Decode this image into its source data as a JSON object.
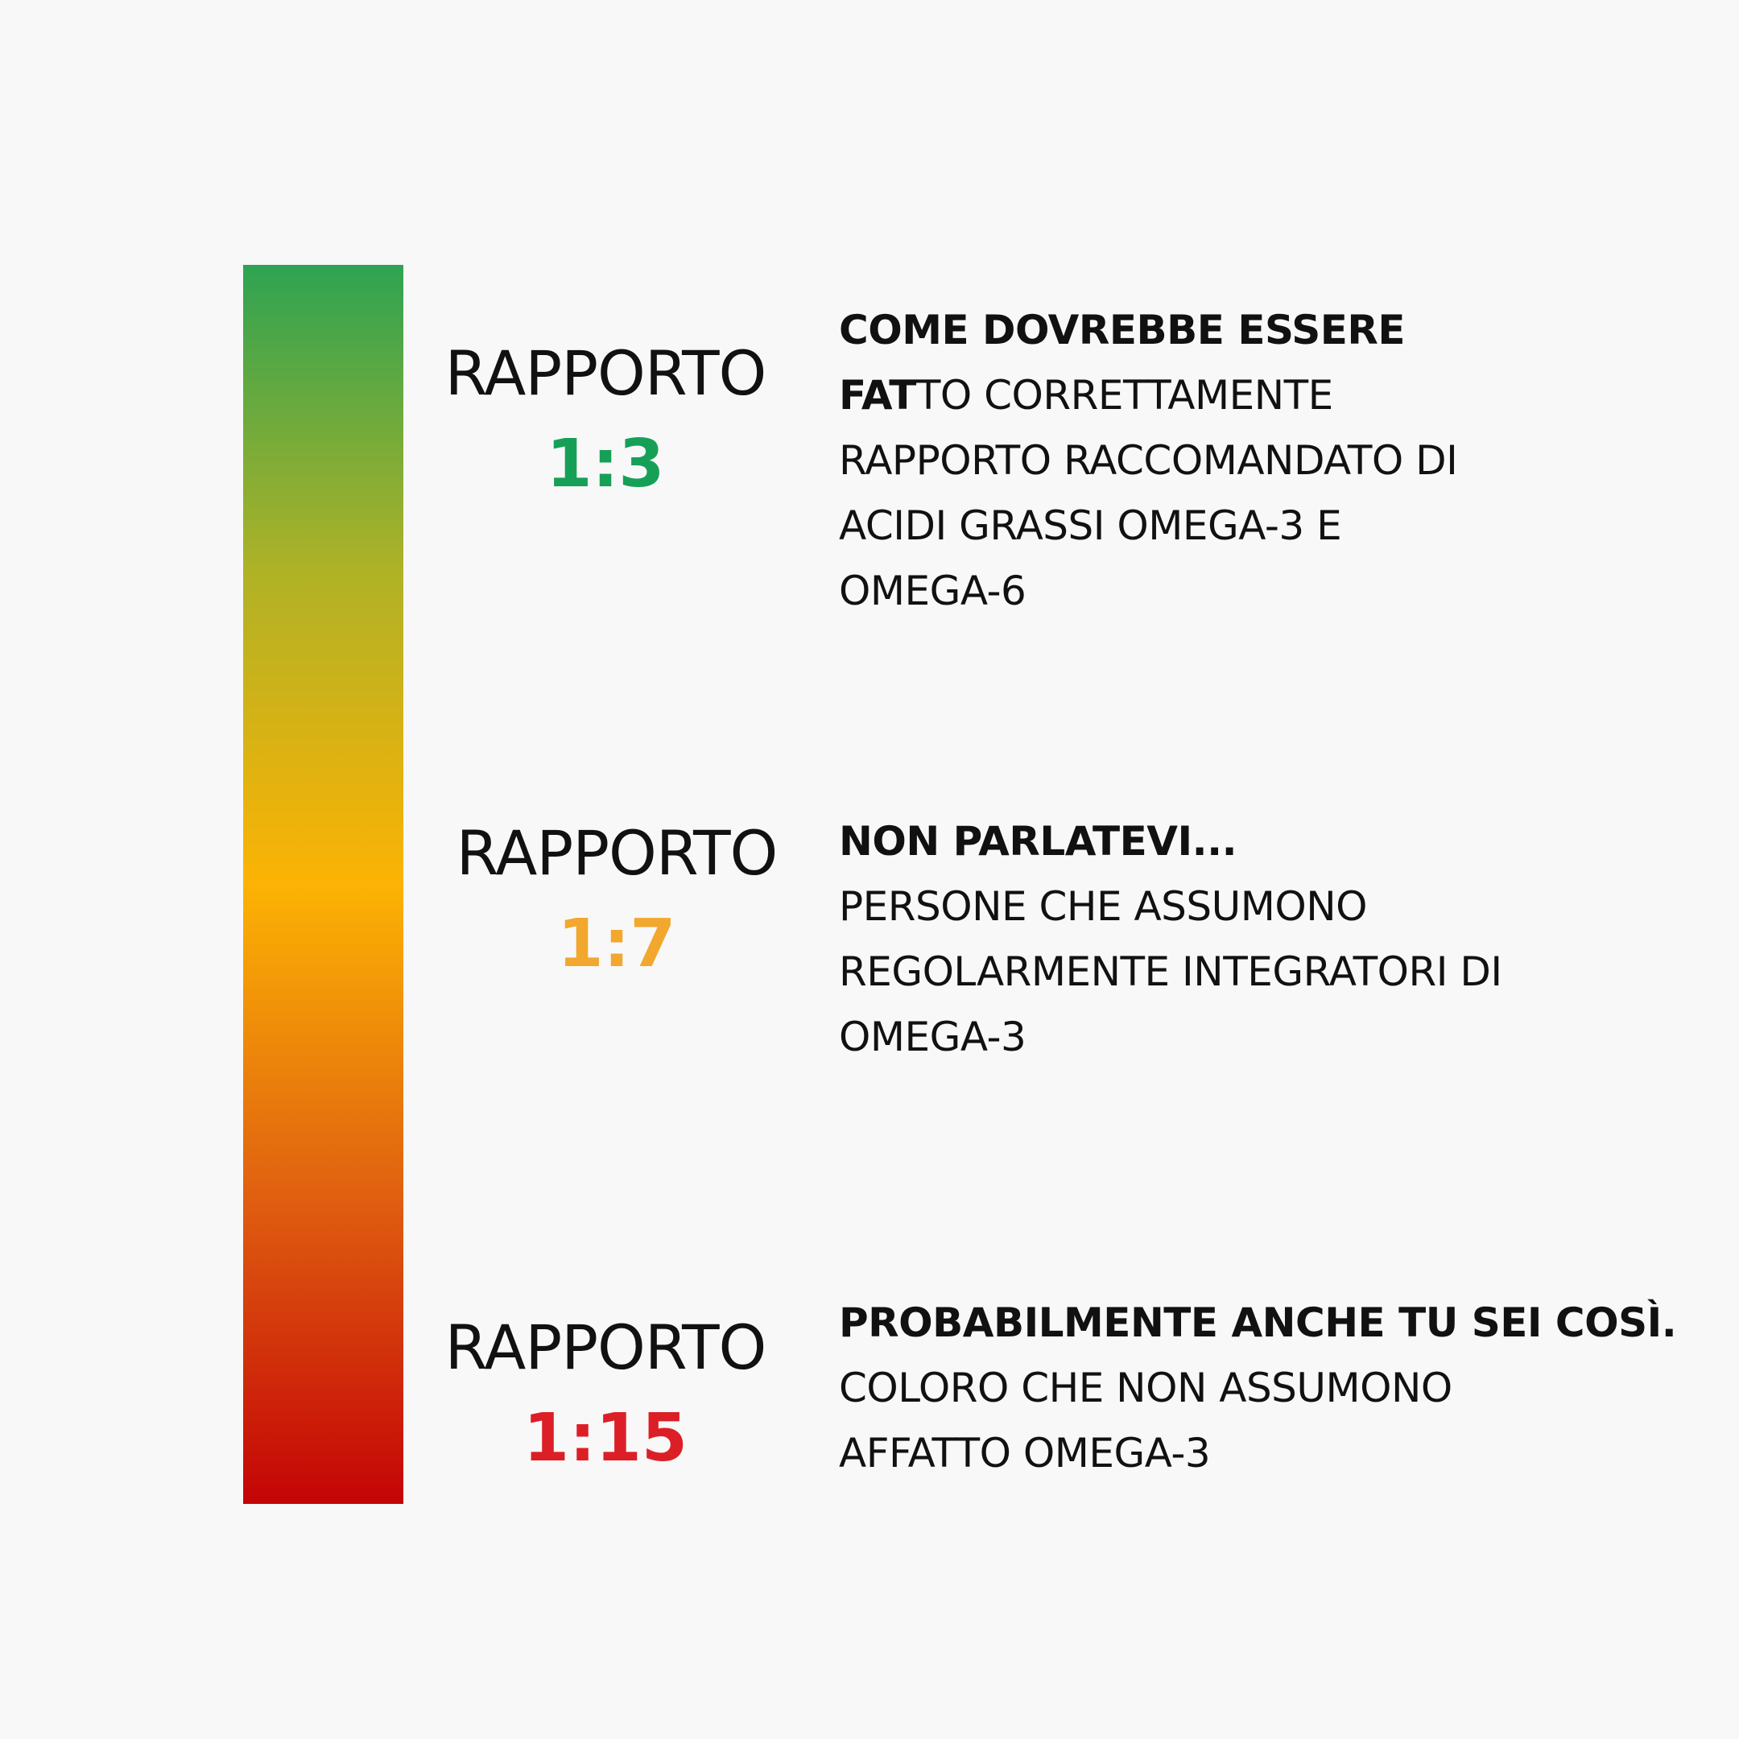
{
  "colors": {
    "background": "#f8f8f8",
    "text": "#111111",
    "bar_gradient": [
      "#2ea352",
      "#b0b226",
      "#fcb304",
      "#e06010",
      "#c40406"
    ]
  },
  "rows": [
    {
      "ratio_label": "RAPPORTO",
      "ratio_value": "1:3",
      "ratio_color": "#16a057",
      "lines": [
        {
          "bold": "COME DOVREBBE ESSERE",
          "regular": ""
        },
        {
          "bold": "FAT",
          "regular": "TO CORRETTAMENTE"
        },
        {
          "bold": "",
          "regular": "RAPPORTO RACCOMANDATO DI"
        },
        {
          "bold": "",
          "regular": "ACIDI GRASSI OMEGA-3 E"
        },
        {
          "bold": "",
          "regular": "OMEGA-6"
        }
      ]
    },
    {
      "ratio_label": "RAPPORTO",
      "ratio_value": "1:7",
      "ratio_color": "#f2a82e",
      "lines": [
        {
          "bold": "NON PARLATEVI...",
          "regular": ""
        },
        {
          "bold": "",
          "regular": "PERSONE CHE ASSUMONO"
        },
        {
          "bold": "",
          "regular": "REGOLARMENTE INTEGRATORI DI"
        },
        {
          "bold": "",
          "regular": "OMEGA-3"
        }
      ]
    },
    {
      "ratio_label": "RAPPORTO",
      "ratio_value": "1:15",
      "ratio_color": "#dc1f26",
      "lines": [
        {
          "bold": "PROBABILMENTE ANCHE TU SEI COSÌ.",
          "regular": ""
        },
        {
          "bold": "",
          "regular": "COLORO CHE NON ASSUMONO"
        },
        {
          "bold": "",
          "regular": "AFFATTO OMEGA-3"
        }
      ]
    }
  ]
}
